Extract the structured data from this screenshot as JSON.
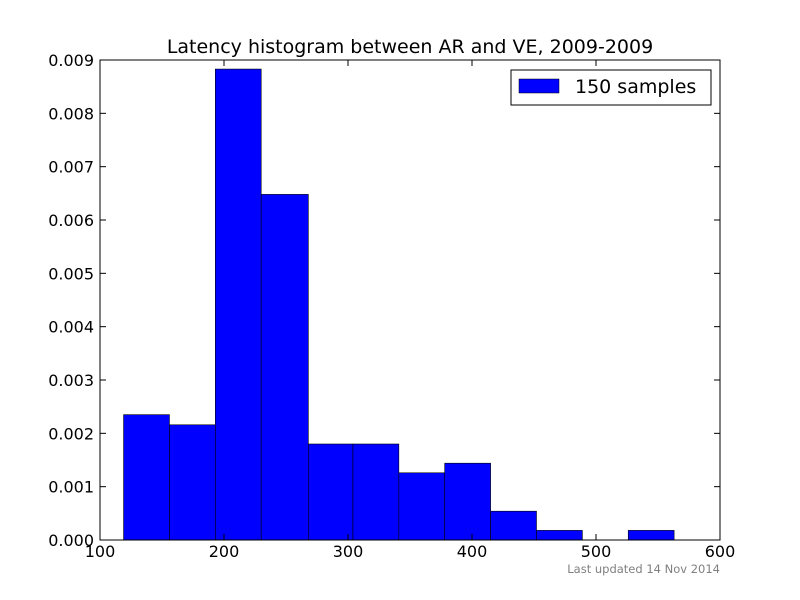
{
  "chart_data": {
    "type": "bar",
    "title": "Latency histogram between AR and VE, 2009-2009",
    "xlabel": "",
    "ylabel": "",
    "xlim": [
      100,
      600
    ],
    "ylim": [
      0,
      0.009
    ],
    "xticks": [
      100,
      200,
      300,
      400,
      500,
      600
    ],
    "xtick_labels": [
      "100",
      "200",
      "300",
      "400",
      "500",
      "600"
    ],
    "yticks": [
      0,
      0.001,
      0.002,
      0.003,
      0.004,
      0.005,
      0.006,
      0.007,
      0.008,
      0.009
    ],
    "ytick_labels": [
      "0.000",
      "0.001",
      "0.002",
      "0.003",
      "0.004",
      "0.005",
      "0.006",
      "0.007",
      "0.008",
      "0.009"
    ],
    "bin_edges": [
      119,
      156,
      193,
      230,
      268,
      304,
      341,
      378,
      415,
      452,
      489,
      526,
      563
    ],
    "values": [
      0.00235,
      0.00216,
      0.00883,
      0.00648,
      0.0018,
      0.0018,
      0.00126,
      0.00144,
      0.00054,
      0.00018,
      0,
      0.00018
    ],
    "bar_color": "#0000ff",
    "edge_color": "#000000",
    "grid": false,
    "legend": {
      "position": "top-right",
      "entries": [
        {
          "label": "150 samples",
          "color": "#0000ff"
        }
      ]
    }
  },
  "footnote": "Last updated 14 Nov 2014"
}
